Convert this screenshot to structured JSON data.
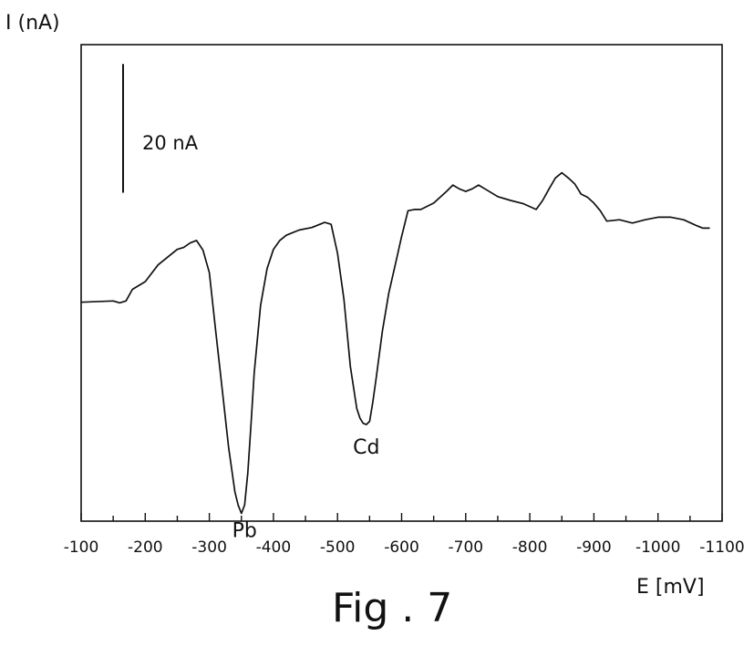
{
  "chart_data": {
    "type": "line",
    "title": "",
    "caption": "Fig . 7",
    "xlabel": "E [mV]",
    "ylabel": "I (nA)",
    "xlim": [
      -100,
      -1100
    ],
    "x_ticks": [
      -100,
      -200,
      -300,
      -400,
      -500,
      -600,
      -700,
      -800,
      -900,
      -1000,
      -1100
    ],
    "x_tick_labels": [
      "-100",
      "-200",
      "-300",
      "-400",
      "-500",
      "-600",
      "-700",
      "-800",
      "-900",
      "-1000",
      "-1100"
    ],
    "y_tick_labels_shown": false,
    "ylim": [
      -36,
      38
    ],
    "grid": false,
    "scale_bar": {
      "label": "20 nA",
      "value": 20,
      "bottom": 15
    },
    "series": [
      {
        "x": [
          -100,
          -150,
          -160,
          -170,
          -180,
          -200,
          -220,
          -250,
          -260,
          -270,
          -280,
          -290,
          -300,
          -310,
          -320,
          -330,
          -340,
          -345,
          -350,
          -355,
          -360,
          -365,
          -370,
          -380,
          -390,
          -400,
          -410,
          -420,
          -440,
          -460,
          -480,
          -490,
          -500,
          -510,
          -520,
          -530,
          -535,
          -540,
          -545,
          -550,
          -555,
          -560,
          -570,
          -580,
          -590,
          -600,
          -610,
          -620,
          -630,
          -650,
          -670,
          -680,
          -690,
          -700,
          -710,
          -720,
          -730,
          -750,
          -770,
          -790,
          -810,
          -820,
          -830,
          -840,
          -850,
          -860,
          -870,
          -880,
          -890,
          -900,
          -910,
          -920,
          -940,
          -960,
          -980,
          -1000,
          -1020,
          -1040,
          -1060,
          -1070,
          -1080
        ],
        "values": [
          -2,
          -1.8,
          -2.1,
          -1.8,
          0,
          1.2,
          3.8,
          6.2,
          6.5,
          7.2,
          7.6,
          6.1,
          2.6,
          -6.5,
          -15.5,
          -24.5,
          -31.5,
          -33.5,
          -34.8,
          -33.5,
          -28.5,
          -21,
          -13,
          -2.5,
          3.2,
          6.2,
          7.6,
          8.4,
          9.2,
          9.6,
          10.4,
          10.1,
          5.6,
          -1.5,
          -12,
          -18.5,
          -20,
          -20.8,
          -21,
          -20.5,
          -17.5,
          -14,
          -6.5,
          -0.6,
          3.8,
          8.2,
          12.2,
          12.4,
          12.4,
          13.4,
          15.2,
          16.2,
          15.6,
          15.2,
          15.6,
          16.2,
          15.6,
          14.4,
          13.8,
          13.3,
          12.4,
          13.8,
          15.6,
          17.3,
          18.1,
          17.3,
          16.4,
          14.8,
          14.3,
          13.4,
          12.2,
          10.6,
          10.8,
          10.3,
          10.8,
          11.2,
          11.2,
          10.8,
          9.9,
          9.5,
          9.5
        ]
      }
    ],
    "annotations": [
      {
        "text": "Pb",
        "x": -355,
        "y": -34.8
      },
      {
        "text": "Cd",
        "x": -545,
        "y": -21
      }
    ]
  }
}
